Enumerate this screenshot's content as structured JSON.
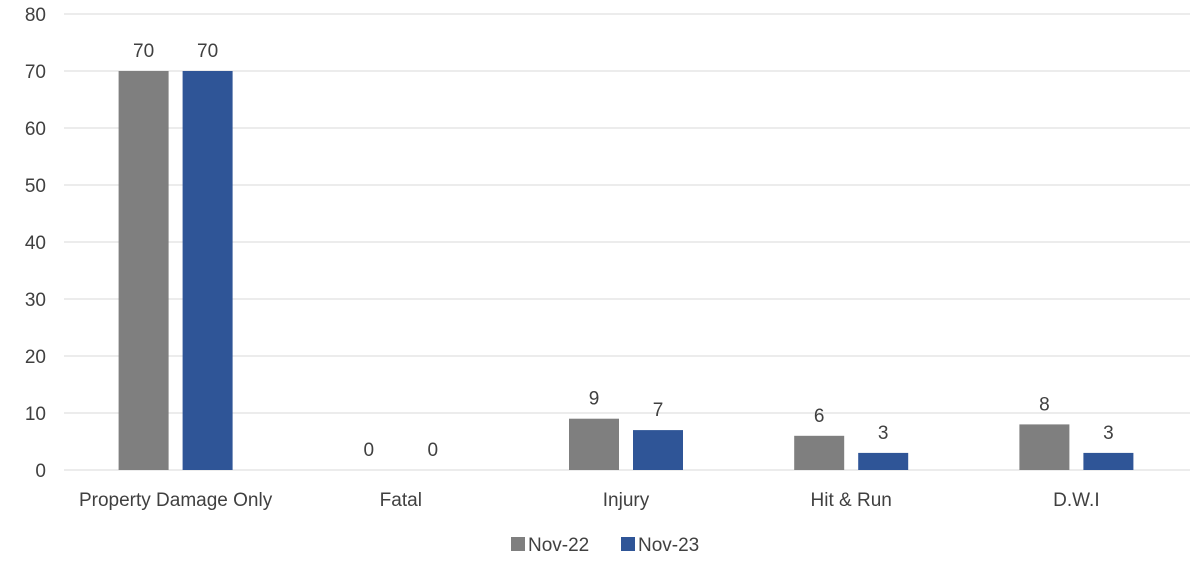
{
  "chart_data": {
    "type": "bar",
    "categories": [
      "Property Damage Only",
      "Fatal",
      "Injury",
      "Hit & Run",
      "D.W.I"
    ],
    "series": [
      {
        "name": "Nov-22",
        "values": [
          70,
          0,
          9,
          6,
          8
        ],
        "color": "#7f7f7f"
      },
      {
        "name": "Nov-23",
        "values": [
          70,
          0,
          7,
          3,
          3
        ],
        "color": "#2f5597"
      }
    ],
    "ylim": [
      0,
      80
    ],
    "yticks": [
      0,
      10,
      20,
      30,
      40,
      50,
      60,
      70,
      80
    ],
    "grid": true,
    "legend_position": "bottom",
    "data_labels": true,
    "title": "",
    "xlabel": "",
    "ylabel": ""
  },
  "colors": {
    "gridline": "#d9d9d9",
    "text": "#404040"
  }
}
